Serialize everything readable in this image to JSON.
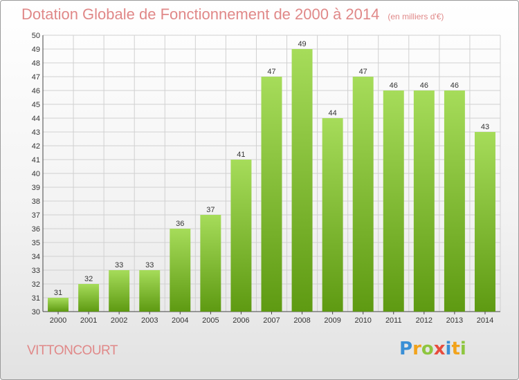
{
  "header": {
    "title": "Dotation Globale de Fonctionnement de 2000 à 2014",
    "unit": "(en milliers d'€)"
  },
  "commune": "VITTONCOURT",
  "logo": {
    "text": "Proxiti",
    "letter_colors": [
      "#3a8fd6",
      "#f2a31b",
      "#8ec63f",
      "#e84c3d",
      "#3a8fd6",
      "#f2a31b",
      "#8ec63f"
    ]
  },
  "colors": {
    "bar_top": "#a6dc5a",
    "bar_bottom": "#5e9a12",
    "title": "#e08888",
    "grid": "#d0d0d0"
  },
  "chart_data": {
    "type": "bar",
    "title": "Dotation Globale de Fonctionnement de 2000 à 2014",
    "subtitle": "(en milliers d'€)",
    "xlabel": "",
    "ylabel": "",
    "categories": [
      "2000",
      "2001",
      "2002",
      "2003",
      "2004",
      "2005",
      "2006",
      "2007",
      "2008",
      "2009",
      "2010",
      "2011",
      "2012",
      "2013",
      "2014"
    ],
    "values": [
      31,
      32,
      33,
      33,
      36,
      37,
      41,
      47,
      49,
      44,
      47,
      46,
      46,
      46,
      43
    ],
    "ylim": [
      30,
      50
    ],
    "yticks": [
      30,
      31,
      32,
      33,
      34,
      35,
      36,
      37,
      38,
      39,
      40,
      41,
      42,
      43,
      44,
      45,
      46,
      47,
      48,
      49,
      50
    ],
    "grid": true,
    "data_labels": true,
    "legend": "none"
  }
}
